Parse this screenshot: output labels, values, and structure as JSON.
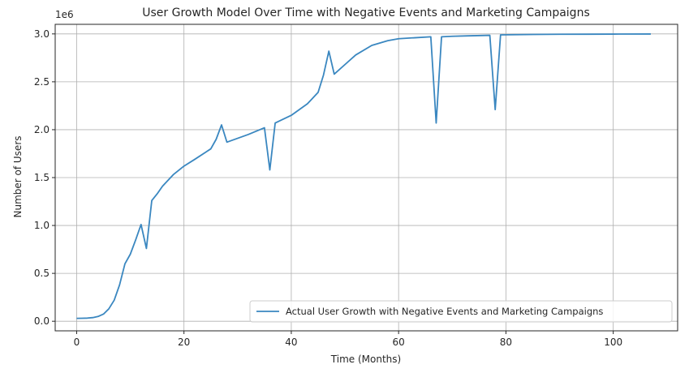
{
  "chart_data": {
    "type": "line",
    "title": "User Growth Model Over Time with Negative Events and Marketing Campaigns",
    "xlabel": "Time (Months)",
    "ylabel": "Number of Users",
    "y_offset_label": "1e6",
    "xlim": [
      -4,
      112
    ],
    "ylim": [
      -0.1,
      3.1
    ],
    "x_ticks": [
      0,
      20,
      40,
      60,
      80,
      100
    ],
    "y_ticks": [
      0.0,
      0.5,
      1.0,
      1.5,
      2.0,
      2.5,
      3.0
    ],
    "y_tick_labels": [
      "0.0",
      "0.5",
      "1.0",
      "1.5",
      "2.0",
      "2.5",
      "3.0"
    ],
    "grid": true,
    "legend_position": "lower-right",
    "series": [
      {
        "name": "Actual User Growth with Negative Events and Marketing Campaigns",
        "color": "#3a87c0",
        "x": [
          0,
          1,
          2,
          3,
          4,
          5,
          6,
          7,
          8,
          9,
          10,
          11,
          12,
          13,
          14,
          15,
          16,
          18,
          20,
          22,
          25,
          26,
          27,
          28,
          30,
          32,
          35,
          36,
          37,
          40,
          43,
          45,
          46,
          47,
          48,
          50,
          52,
          55,
          58,
          60,
          63,
          66,
          67,
          68,
          70,
          73,
          77,
          78,
          79,
          82,
          85,
          90,
          95,
          100,
          107
        ],
        "values": [
          0.03,
          0.031,
          0.033,
          0.038,
          0.05,
          0.075,
          0.13,
          0.22,
          0.38,
          0.6,
          0.7,
          0.85,
          1.01,
          0.76,
          1.26,
          1.33,
          1.41,
          1.53,
          1.62,
          1.69,
          1.8,
          1.9,
          2.05,
          1.87,
          1.91,
          1.95,
          2.02,
          1.58,
          2.07,
          2.15,
          2.27,
          2.39,
          2.57,
          2.82,
          2.58,
          2.68,
          2.78,
          2.88,
          2.93,
          2.95,
          2.96,
          2.97,
          2.07,
          2.97,
          2.975,
          2.98,
          2.985,
          2.21,
          2.99,
          2.992,
          2.994,
          2.996,
          2.997,
          2.998,
          2.999
        ]
      }
    ]
  }
}
